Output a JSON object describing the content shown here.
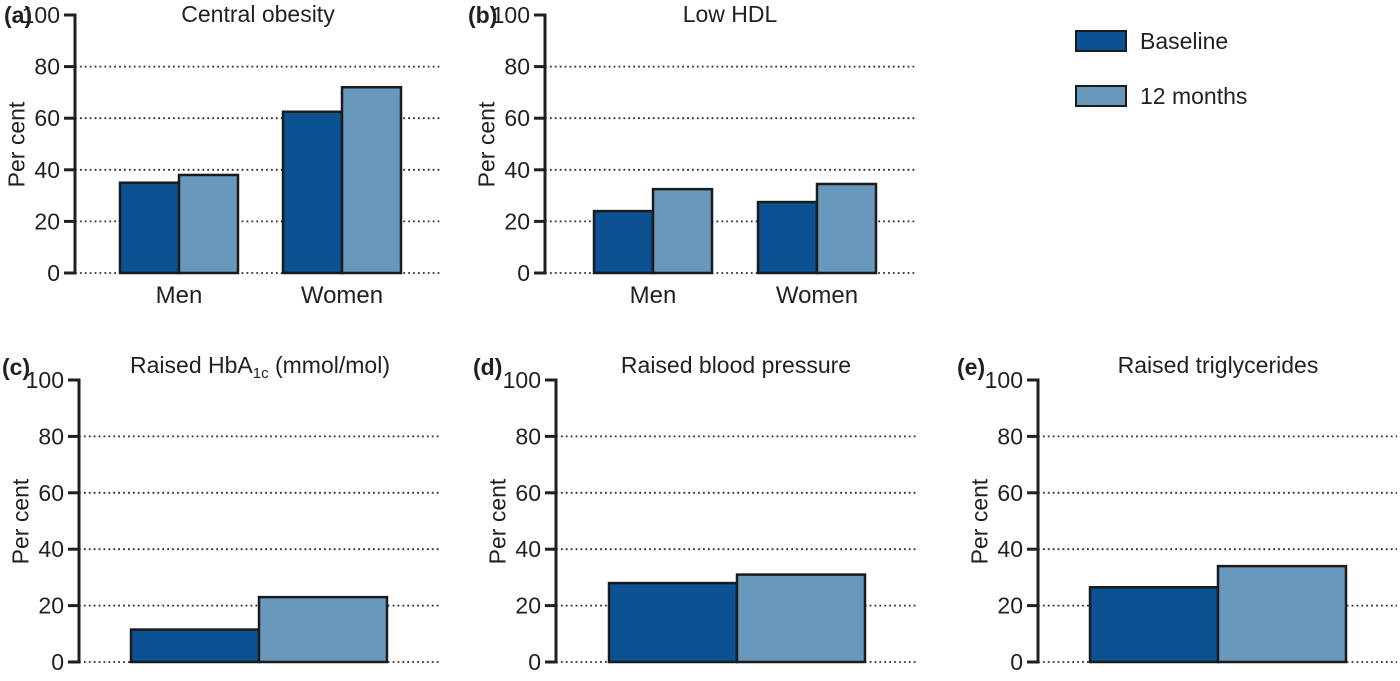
{
  "figure": {
    "ylabel": "Per cent",
    "legend_position": "top-right"
  },
  "colors": {
    "baseline": "#0c5191",
    "twelve_months": "#6899bd",
    "bar_outline": "#1b1b1b",
    "axis": "#231f20",
    "text": "#231f20",
    "background": "#ffffff"
  },
  "legend": {
    "items": [
      {
        "label": "Baseline",
        "color": "#0c5191"
      },
      {
        "label": "12 months",
        "color": "#6899bd"
      }
    ]
  },
  "chart_data": [
    {
      "id": "a",
      "panel_label": "(a)",
      "type": "bar",
      "title": "Central obesity",
      "title_prefix": "Central obesity",
      "title_sub": "",
      "title_suffix": "",
      "ylabel": "Per cent",
      "ylim": [
        0,
        100
      ],
      "yticks": [
        0,
        20,
        40,
        60,
        80,
        100
      ],
      "grid": "dotted-horizontal",
      "categories": [
        "Men",
        "Women"
      ],
      "series": [
        {
          "name": "Baseline",
          "values": [
            35,
            62.5
          ]
        },
        {
          "name": "12 months",
          "values": [
            38,
            72
          ]
        }
      ]
    },
    {
      "id": "b",
      "panel_label": "(b)",
      "type": "bar",
      "title": "Low HDL",
      "title_prefix": "Low HDL",
      "title_sub": "",
      "title_suffix": "",
      "ylabel": "Per cent",
      "ylim": [
        0,
        100
      ],
      "yticks": [
        0,
        20,
        40,
        60,
        80,
        100
      ],
      "grid": "dotted-horizontal",
      "categories": [
        "Men",
        "Women"
      ],
      "series": [
        {
          "name": "Baseline",
          "values": [
            24,
            27.5
          ]
        },
        {
          "name": "12 months",
          "values": [
            32.5,
            34.5
          ]
        }
      ]
    },
    {
      "id": "c",
      "panel_label": "(c)",
      "type": "bar",
      "title": "Raised HbA1c (mmol/mol)",
      "title_prefix": "Raised HbA",
      "title_sub": "1c",
      "title_suffix": " (mmol/mol)",
      "ylabel": "Per cent",
      "ylim": [
        0,
        100
      ],
      "yticks": [
        0,
        20,
        40,
        60,
        80,
        100
      ],
      "grid": "dotted-horizontal",
      "categories": [
        ""
      ],
      "series": [
        {
          "name": "Baseline",
          "values": [
            11.5
          ]
        },
        {
          "name": "12 months",
          "values": [
            23
          ]
        }
      ]
    },
    {
      "id": "d",
      "panel_label": "(d)",
      "type": "bar",
      "title": "Raised blood pressure",
      "title_prefix": "Raised blood pressure",
      "title_sub": "",
      "title_suffix": "",
      "ylabel": "Per cent",
      "ylim": [
        0,
        100
      ],
      "yticks": [
        0,
        20,
        40,
        60,
        80,
        100
      ],
      "grid": "dotted-horizontal",
      "categories": [
        ""
      ],
      "series": [
        {
          "name": "Baseline",
          "values": [
            28
          ]
        },
        {
          "name": "12 months",
          "values": [
            31
          ]
        }
      ]
    },
    {
      "id": "e",
      "panel_label": "(e)",
      "type": "bar",
      "title": "Raised triglycerides",
      "title_prefix": "Raised triglycerides",
      "title_sub": "",
      "title_suffix": "",
      "ylabel": "Per cent",
      "ylim": [
        0,
        100
      ],
      "yticks": [
        0,
        20,
        40,
        60,
        80,
        100
      ],
      "grid": "dotted-horizontal",
      "categories": [
        ""
      ],
      "series": [
        {
          "name": "Baseline",
          "values": [
            26.5
          ]
        },
        {
          "name": "12 months",
          "values": [
            34
          ]
        }
      ]
    }
  ]
}
